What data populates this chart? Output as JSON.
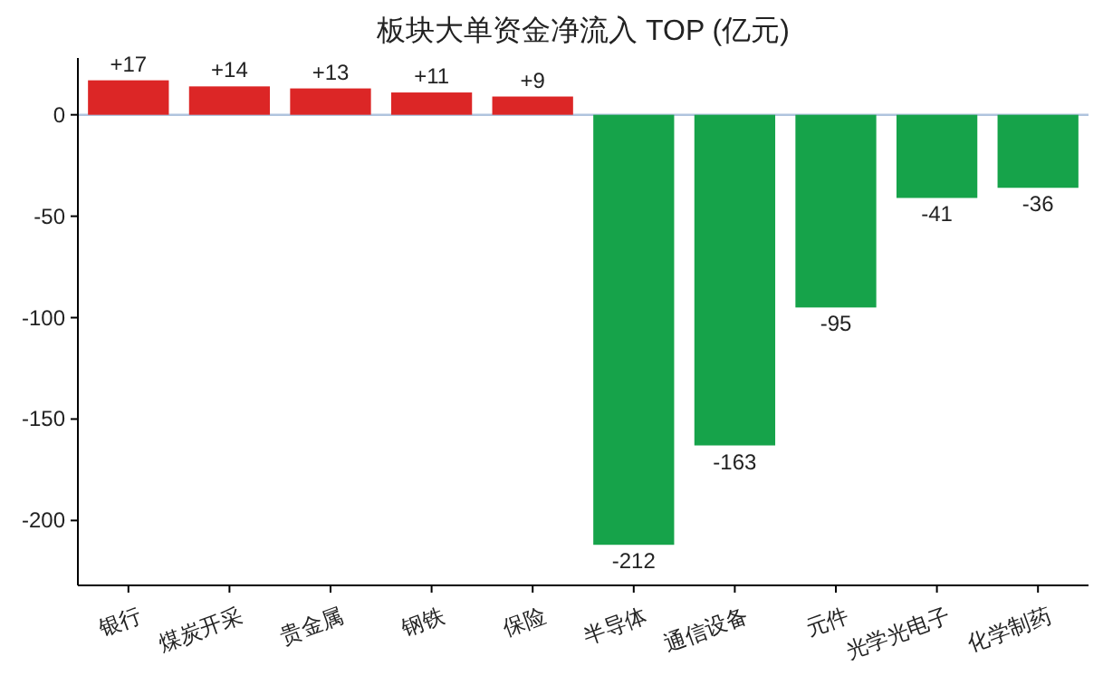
{
  "chart_data": {
    "type": "bar",
    "title": "板块大单资金净流入 TOP (亿元)",
    "categories": [
      "银行",
      "煤炭开采",
      "贵金属",
      "钢铁",
      "保险",
      "半导体",
      "通信设备",
      "元件",
      "光学光电子",
      "化学制药"
    ],
    "values": [
      17,
      14,
      13,
      11,
      9,
      -212,
      -163,
      -95,
      -41,
      -36
    ],
    "value_labels": [
      "+17",
      "+14",
      "+13",
      "+11",
      "+9",
      "-212",
      "-163",
      "-95",
      "-41",
      "-36"
    ],
    "colors": [
      "#dc2626",
      "#dc2626",
      "#dc2626",
      "#dc2626",
      "#dc2626",
      "#16a34a",
      "#16a34a",
      "#16a34a",
      "#16a34a",
      "#16a34a"
    ],
    "ylim": [
      -232,
      28
    ],
    "yticks": [
      0,
      {
        "value": -50,
        "label": "-50"
      },
      {
        "value": -100,
        "label": "-100"
      },
      {
        "value": -150,
        "label": "-150"
      },
      {
        "value": -200,
        "label": "-200"
      }
    ],
    "ref_lines": [
      {
        "axis": "y",
        "value": 0,
        "color": "#b0c4de"
      }
    ],
    "grid": false
  }
}
